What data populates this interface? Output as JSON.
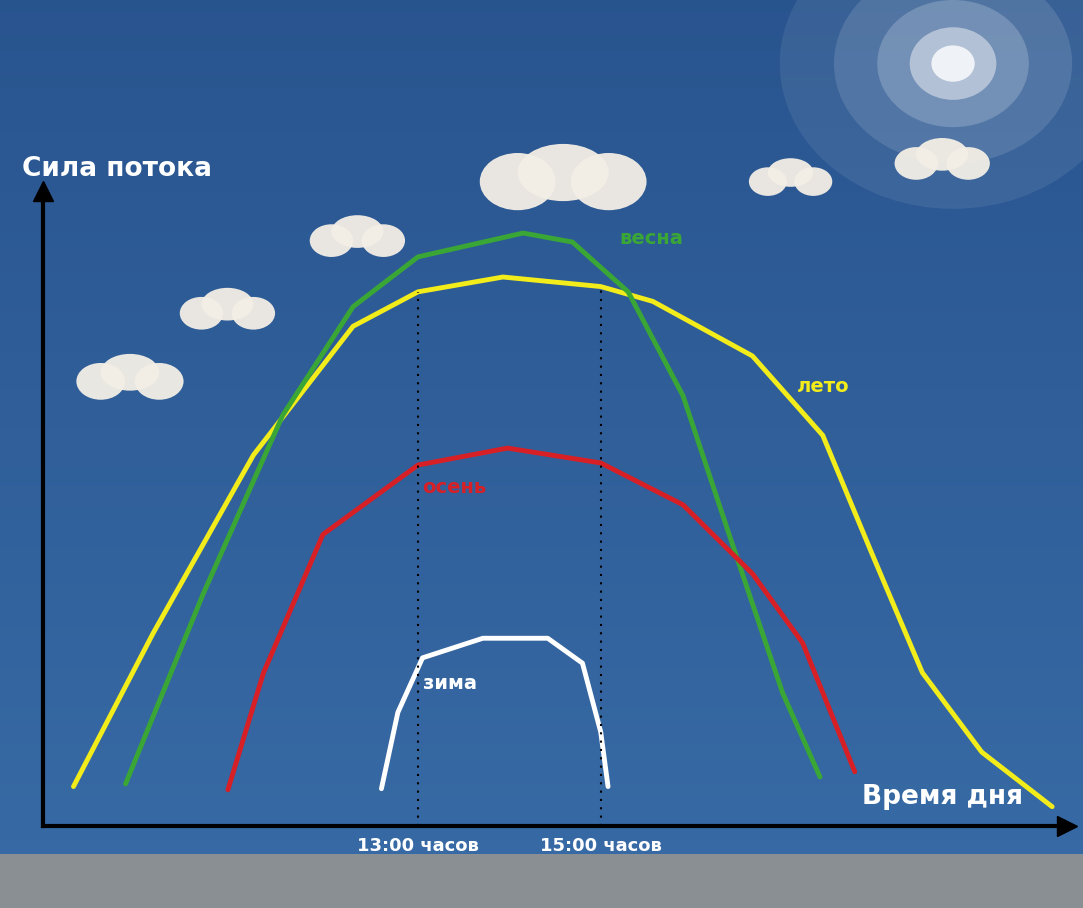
{
  "chart_data": {
    "type": "line",
    "x_label": "Время дня",
    "y_label": "Сила потока",
    "xlim": [
      8.9,
      20.1
    ],
    "ylim": [
      0,
      120
    ],
    "xticks": [
      {
        "value": 13,
        "label": "13:00 часов"
      },
      {
        "value": 15,
        "label": "15:00 часов"
      }
    ],
    "yticks": [],
    "tick_labels": "x",
    "grid": false,
    "series": [
      {
        "name": "лето",
        "color": "#f2ec1b",
        "x": [
          9.23,
          10.1,
          11.2,
          12.29,
          13.0,
          13.93,
          15.0,
          15.57,
          16.66,
          17.43,
          17.97,
          18.52,
          19.17,
          19.94
        ],
        "values": [
          7.5,
          36.4,
          70.1,
          94.4,
          100.9,
          103.7,
          101.9,
          99.1,
          88.8,
          73.8,
          51.4,
          29.0,
          14.0,
          3.7
        ]
      },
      {
        "name": "весна",
        "color": "#3aa635",
        "x": [
          9.8,
          10.65,
          11.52,
          12.29,
          13.0,
          14.15,
          14.69,
          15.3,
          15.9,
          16.44,
          16.99,
          17.4
        ],
        "values": [
          8.0,
          43.9,
          77.6,
          98.1,
          107.5,
          112.0,
          110.3,
          100.9,
          81.3,
          53.3,
          25.2,
          9.3
        ]
      },
      {
        "name": "осень",
        "color": "#d71f26",
        "x": [
          10.92,
          11.31,
          11.96,
          13.0,
          13.98,
          15.0,
          15.9,
          16.66,
          17.21,
          17.78
        ],
        "values": [
          6.9,
          29.0,
          55.1,
          68.2,
          71.4,
          68.6,
          60.7,
          47.7,
          34.6,
          10.3
        ]
      },
      {
        "name": "зима",
        "color": "#ffffff",
        "x": [
          12.6,
          12.78,
          13.05,
          13.71,
          14.42,
          14.8,
          15.0,
          15.08
        ],
        "values": [
          7.1,
          21.5,
          31.8,
          35.5,
          35.5,
          30.8,
          17.8,
          7.5
        ]
      }
    ]
  }
}
